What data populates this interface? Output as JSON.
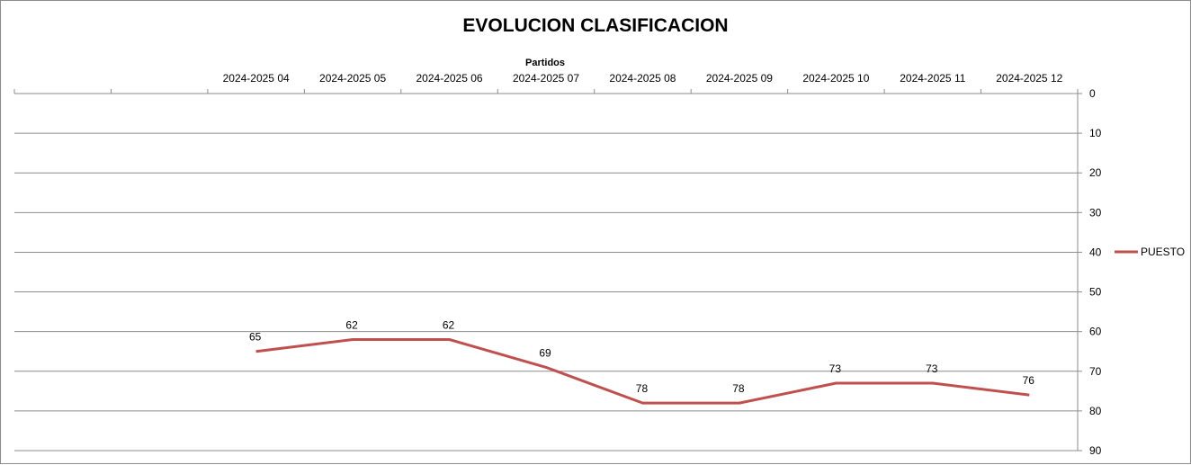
{
  "chart_data": {
    "type": "line",
    "title": "EVOLUCION CLASIFICACION",
    "xlabel": "Partidos",
    "ylabel": "",
    "categories": [
      "",
      "",
      "2024-2025 04",
      "2024-2025 05",
      "2024-2025 06",
      "2024-2025 07",
      "2024-2025 08",
      "2024-2025 09",
      "2024-2025 10",
      "2024-2025 11",
      "2024-2025 12"
    ],
    "series": [
      {
        "name": "PUESTO",
        "values": [
          null,
          null,
          65,
          62,
          62,
          69,
          78,
          78,
          73,
          73,
          76
        ],
        "color": "#c0504d"
      }
    ],
    "ylim": [
      0,
      90
    ],
    "yticks": [
      0,
      10,
      20,
      30,
      40,
      50,
      60,
      70,
      80,
      90
    ],
    "y_reversed": true,
    "x_axis_position": "top",
    "y_axis_position": "right",
    "grid": true,
    "data_labels": true,
    "legend_position": "right"
  }
}
